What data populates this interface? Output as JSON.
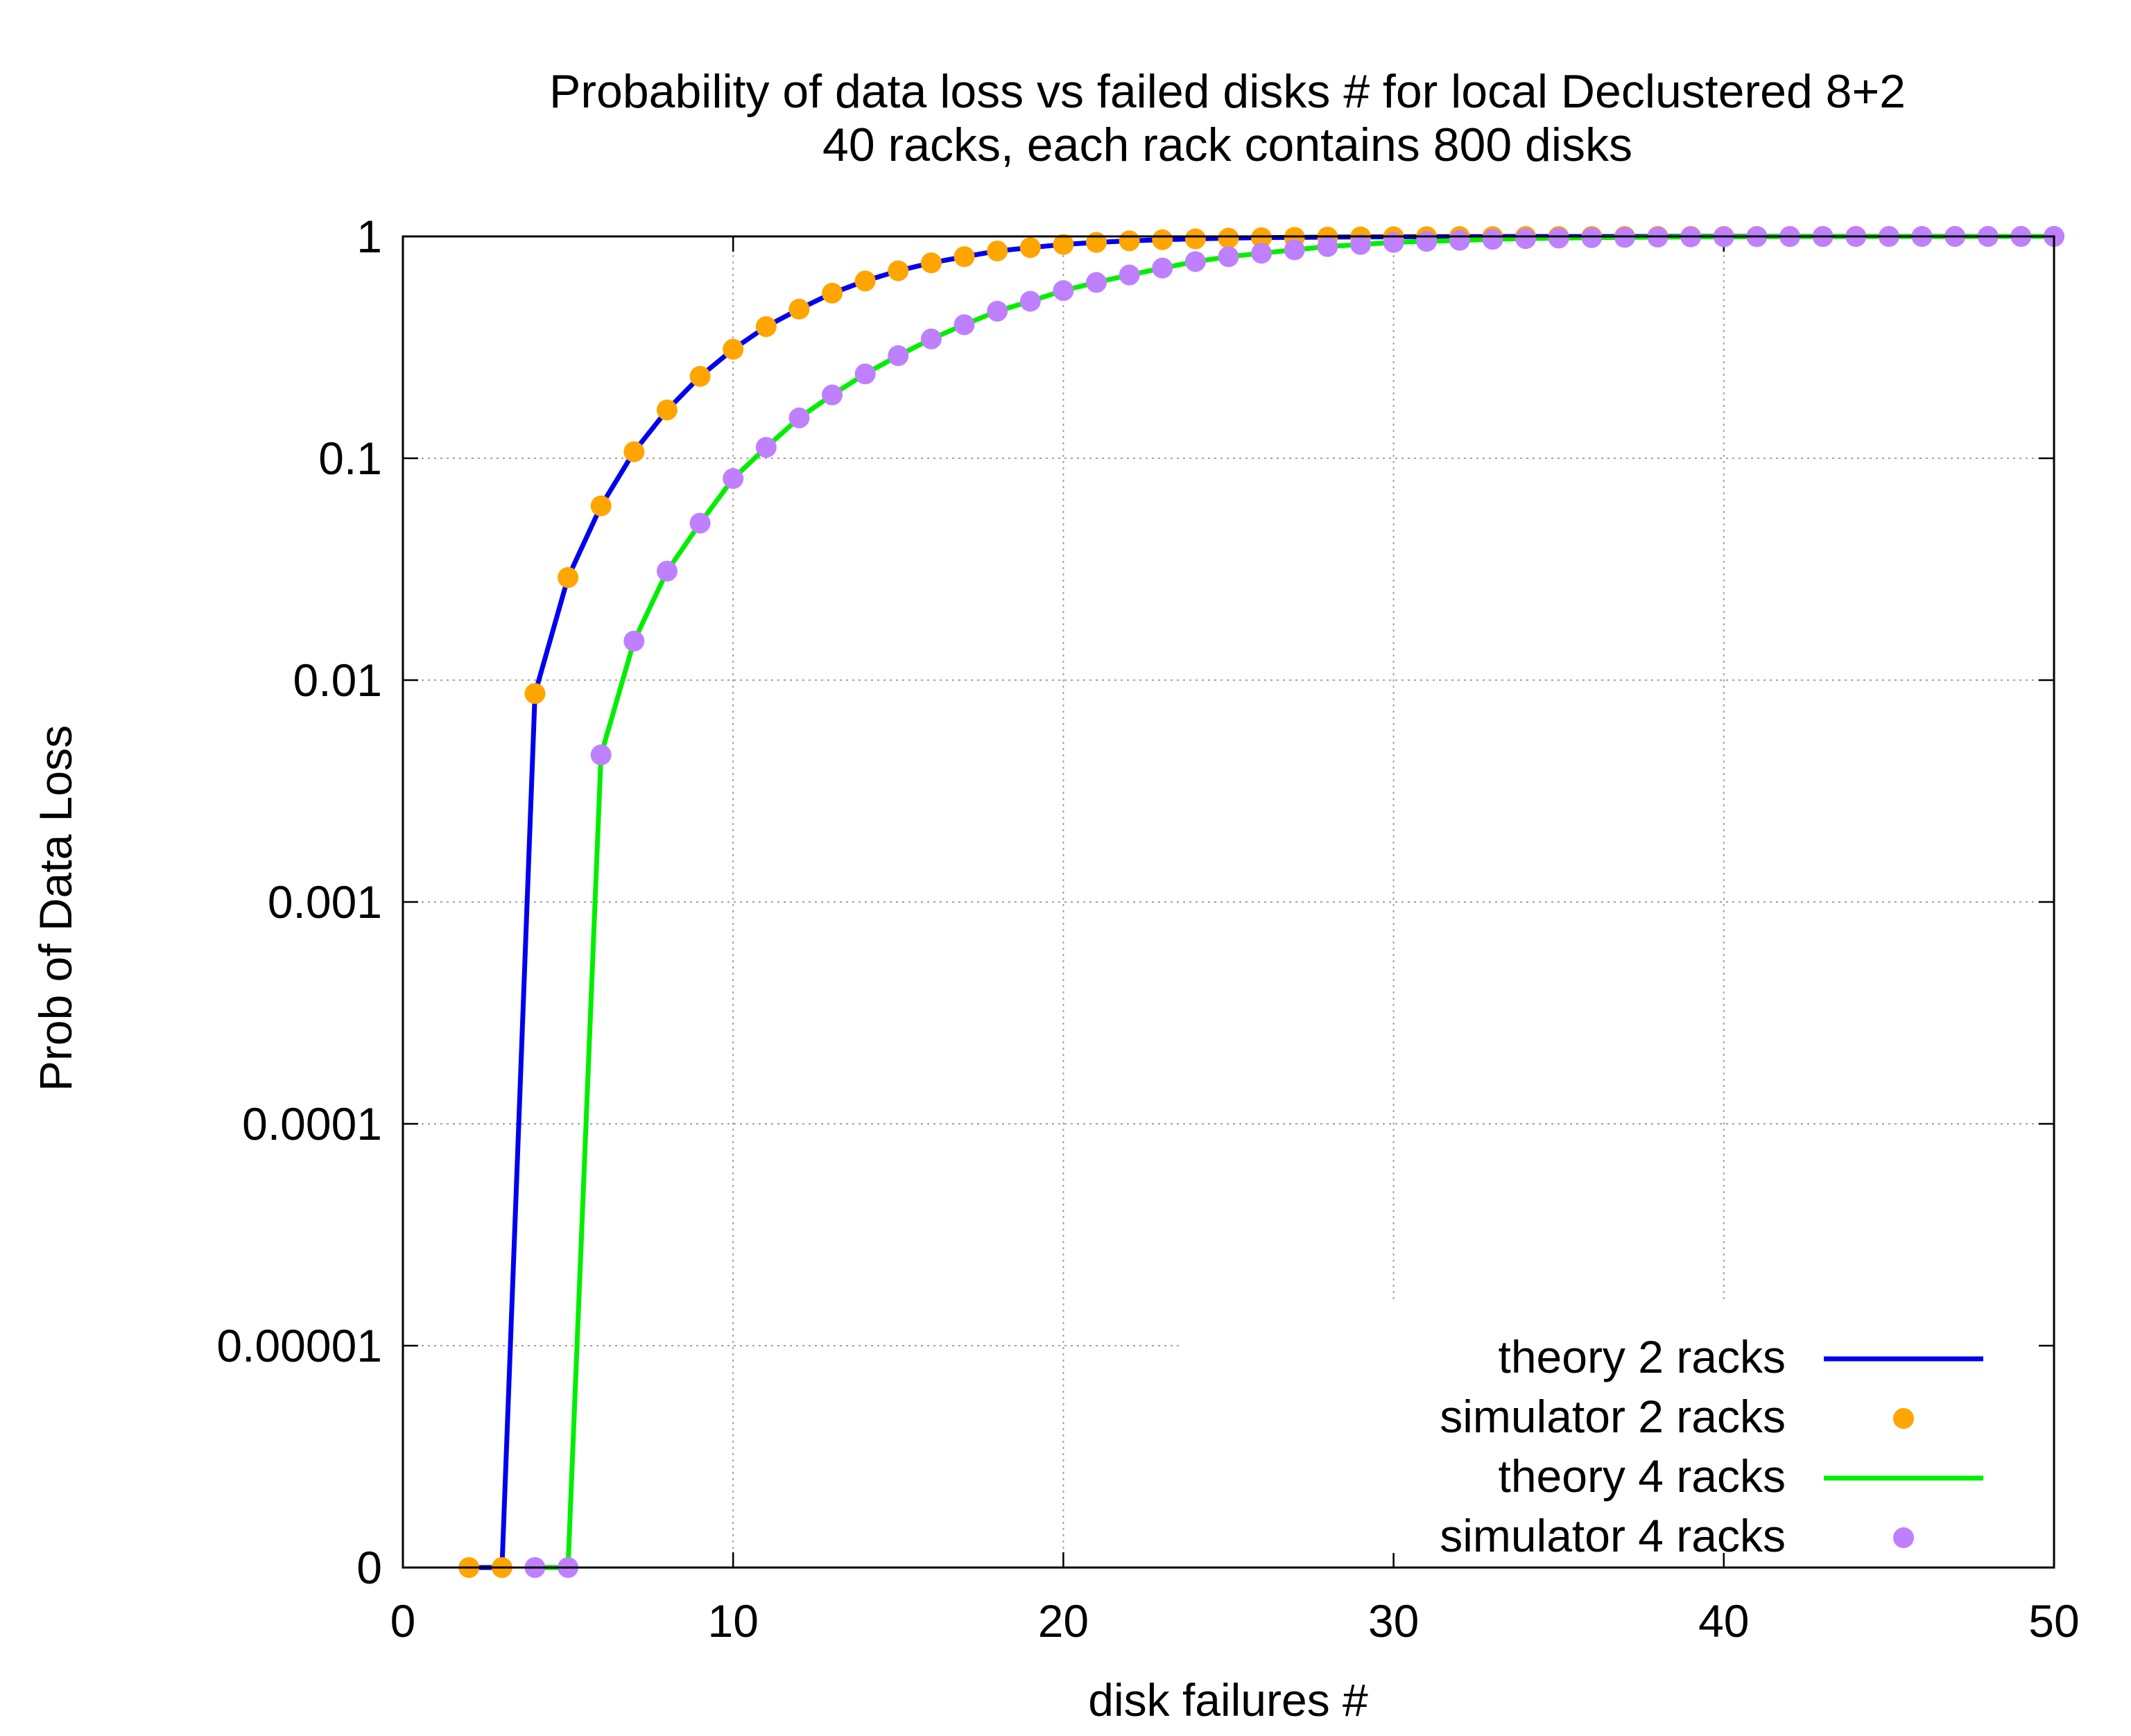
{
  "chart_data": {
    "type": "line",
    "title": "Probability of data loss vs failed disks # for local Declustered 8+2",
    "subtitle": "40 racks, each rack contains 800 disks",
    "xlabel": "disk failures #",
    "ylabel": "Prob of Data Loss",
    "xlim": [
      0,
      50
    ],
    "y_scale": "log",
    "y_ticks": [
      {
        "label": "0",
        "value": 0
      },
      {
        "label": "0.00001",
        "value": 1e-05
      },
      {
        "label": "0.0001",
        "value": 0.0001
      },
      {
        "label": "0.001",
        "value": 0.001
      },
      {
        "label": "0.01",
        "value": 0.01
      },
      {
        "label": "0.1",
        "value": 0.1
      },
      {
        "label": "1",
        "value": 1
      }
    ],
    "x_ticks": [
      0,
      10,
      20,
      30,
      40,
      50
    ],
    "grid": true,
    "legend_position": "bottom-right",
    "series": [
      {
        "name": "theory 2 racks",
        "style": "line",
        "color": "#0000ee",
        "x": [
          2,
          3,
          4,
          5,
          6,
          7,
          8,
          9,
          10,
          11,
          12,
          13,
          14,
          15,
          16,
          17,
          18,
          19,
          20,
          21,
          22,
          23,
          24,
          25,
          26,
          27,
          28,
          29,
          30,
          31,
          32,
          33,
          34,
          35,
          36,
          37,
          38,
          39,
          40,
          41,
          42,
          43,
          44,
          45,
          46,
          47,
          48,
          49,
          50
        ],
        "y": [
          0,
          0,
          0.0087,
          0.029,
          0.061,
          0.107,
          0.165,
          0.234,
          0.31,
          0.392,
          0.47,
          0.555,
          0.63,
          0.7,
          0.76,
          0.81,
          0.86,
          0.89,
          0.92,
          0.94,
          0.955,
          0.966,
          0.975,
          0.982,
          0.987,
          0.99,
          0.993,
          0.995,
          0.996,
          0.997,
          0.998,
          0.9985,
          0.999,
          0.9993,
          0.9995,
          0.9996,
          0.9997,
          0.9998,
          0.9998,
          0.9999,
          0.9999,
          0.9999,
          0.9999,
          1,
          1,
          1,
          1,
          1,
          1
        ]
      },
      {
        "name": "simulator 2 racks",
        "style": "points",
        "color": "#ffa500",
        "x": [
          2,
          3,
          4,
          5,
          6,
          7,
          8,
          9,
          10,
          11,
          12,
          13,
          14,
          15,
          16,
          17,
          18,
          19,
          20,
          21,
          22,
          23,
          24,
          25,
          26,
          27,
          28,
          29,
          30,
          31,
          32,
          33,
          34,
          35,
          36,
          37,
          38,
          39,
          40,
          41,
          42,
          43,
          44,
          45,
          46,
          47,
          48,
          49,
          50
        ],
        "y": [
          0,
          0,
          0.0087,
          0.029,
          0.061,
          0.107,
          0.165,
          0.234,
          0.31,
          0.392,
          0.47,
          0.555,
          0.63,
          0.7,
          0.76,
          0.81,
          0.86,
          0.89,
          0.92,
          0.94,
          0.955,
          0.966,
          0.975,
          0.982,
          0.987,
          0.99,
          0.993,
          0.995,
          0.996,
          0.997,
          0.998,
          0.9985,
          0.999,
          0.9993,
          0.9995,
          0.9996,
          0.9997,
          0.9998,
          0.9998,
          0.9999,
          0.9999,
          0.9999,
          0.9999,
          1,
          1,
          1,
          1,
          1,
          1
        ]
      },
      {
        "name": "theory 4 racks",
        "style": "line",
        "color": "#00ee00",
        "x": [
          4,
          5,
          6,
          7,
          8,
          9,
          10,
          11,
          12,
          13,
          14,
          15,
          16,
          17,
          18,
          19,
          20,
          21,
          22,
          23,
          24,
          25,
          26,
          27,
          28,
          29,
          30,
          31,
          32,
          33,
          34,
          35,
          36,
          37,
          38,
          39,
          40,
          41,
          42,
          43,
          44,
          45,
          46,
          47,
          48,
          49,
          50
        ],
        "y": [
          0,
          0,
          0.0046,
          0.015,
          0.031,
          0.051,
          0.081,
          0.112,
          0.152,
          0.193,
          0.24,
          0.29,
          0.345,
          0.4,
          0.46,
          0.51,
          0.57,
          0.62,
          0.67,
          0.72,
          0.77,
          0.81,
          0.84,
          0.87,
          0.9,
          0.92,
          0.94,
          0.95,
          0.96,
          0.97,
          0.978,
          0.983,
          0.987,
          0.99,
          0.993,
          0.995,
          0.996,
          0.997,
          0.998,
          0.9985,
          0.999,
          0.9993,
          0.9995,
          0.9996,
          0.9997,
          0.9998,
          0.9999
        ]
      },
      {
        "name": "simulator 4 racks",
        "style": "points",
        "color": "#bf80ff",
        "x": [
          4,
          5,
          6,
          7,
          8,
          9,
          10,
          11,
          12,
          13,
          14,
          15,
          16,
          17,
          18,
          19,
          20,
          21,
          22,
          23,
          24,
          25,
          26,
          27,
          28,
          29,
          30,
          31,
          32,
          33,
          34,
          35,
          36,
          37,
          38,
          39,
          40,
          41,
          42,
          43,
          44,
          45,
          46,
          47,
          48,
          49,
          50
        ],
        "y": [
          0,
          0,
          0.0046,
          0.015,
          0.031,
          0.051,
          0.081,
          0.112,
          0.152,
          0.193,
          0.24,
          0.29,
          0.345,
          0.4,
          0.46,
          0.51,
          0.57,
          0.62,
          0.67,
          0.72,
          0.77,
          0.81,
          0.84,
          0.87,
          0.9,
          0.92,
          0.94,
          0.95,
          0.96,
          0.97,
          0.978,
          0.983,
          0.987,
          0.99,
          0.993,
          0.995,
          0.996,
          0.997,
          0.998,
          0.9985,
          0.999,
          0.9993,
          0.9995,
          0.9996,
          0.9997,
          0.9998,
          0.9999
        ]
      }
    ]
  }
}
